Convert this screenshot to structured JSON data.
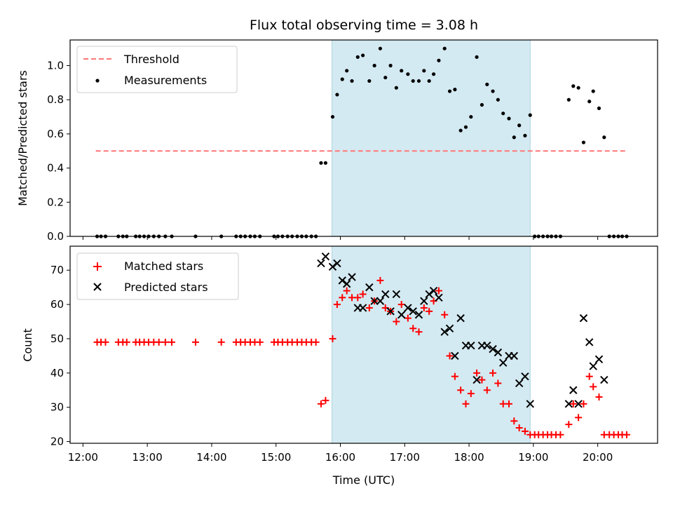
{
  "chart_data": {
    "title": "Flux total observing time = 3.08 h",
    "xlabel": "Time (UTC)",
    "x_unit": "hours UTC",
    "xlim": [
      11.8,
      20.93
    ],
    "xticks": [
      {
        "value": 12,
        "label": "12:00"
      },
      {
        "value": 13,
        "label": "13:00"
      },
      {
        "value": 14,
        "label": "14:00"
      },
      {
        "value": 15,
        "label": "15:00"
      },
      {
        "value": 16,
        "label": "16:00"
      },
      {
        "value": 17,
        "label": "17:00"
      },
      {
        "value": 18,
        "label": "18:00"
      },
      {
        "value": 19,
        "label": "19:00"
      },
      {
        "value": 20,
        "label": "20:00"
      }
    ],
    "shaded_span": {
      "x": [
        15.87,
        18.95
      ],
      "color": "#d4eaf2"
    },
    "panels": [
      {
        "type": "scatter",
        "ylabel": "Matched/Predicted stars",
        "ylim": [
          0,
          1.15
        ],
        "yticks": [
          "0.0",
          "0.2",
          "0.4",
          "0.6",
          "0.8",
          "1.0"
        ],
        "threshold": {
          "name": "Threshold",
          "y": 0.5,
          "x": [
            12.2,
            20.45
          ],
          "color": "#ff7777"
        },
        "series": [
          {
            "name": "Measurements",
            "color": "#000000",
            "points": [
              [
                12.22,
                0
              ],
              [
                12.28,
                0
              ],
              [
                12.35,
                0
              ],
              [
                12.55,
                0
              ],
              [
                12.62,
                0
              ],
              [
                12.68,
                0
              ],
              [
                12.82,
                0
              ],
              [
                12.88,
                0
              ],
              [
                12.95,
                0
              ],
              [
                13.02,
                0
              ],
              [
                13.1,
                0
              ],
              [
                13.18,
                0
              ],
              [
                13.28,
                0
              ],
              [
                13.38,
                0
              ],
              [
                13.75,
                0
              ],
              [
                14.15,
                0
              ],
              [
                14.38,
                0
              ],
              [
                14.45,
                0
              ],
              [
                14.52,
                0
              ],
              [
                14.6,
                0
              ],
              [
                14.67,
                0
              ],
              [
                14.75,
                0
              ],
              [
                14.97,
                0
              ],
              [
                15.03,
                0
              ],
              [
                15.1,
                0
              ],
              [
                15.18,
                0
              ],
              [
                15.25,
                0
              ],
              [
                15.33,
                0
              ],
              [
                15.4,
                0
              ],
              [
                15.47,
                0
              ],
              [
                15.55,
                0
              ],
              [
                15.62,
                0
              ],
              [
                15.7,
                0.43
              ],
              [
                15.77,
                0.43
              ],
              [
                15.88,
                0.7
              ],
              [
                15.95,
                0.83
              ],
              [
                16.03,
                0.92
              ],
              [
                16.1,
                0.97
              ],
              [
                16.18,
                0.91
              ],
              [
                16.27,
                1.05
              ],
              [
                16.35,
                1.06
              ],
              [
                16.45,
                0.91
              ],
              [
                16.53,
                1.0
              ],
              [
                16.62,
                1.1
              ],
              [
                16.7,
                0.93
              ],
              [
                16.78,
                1.0
              ],
              [
                16.87,
                0.87
              ],
              [
                16.95,
                0.97
              ],
              [
                17.05,
                0.95
              ],
              [
                17.13,
                0.91
              ],
              [
                17.22,
                0.91
              ],
              [
                17.3,
                0.97
              ],
              [
                17.38,
                0.91
              ],
              [
                17.45,
                0.95
              ],
              [
                17.53,
                1.03
              ],
              [
                17.62,
                1.1
              ],
              [
                17.7,
                0.85
              ],
              [
                17.78,
                0.86
              ],
              [
                17.87,
                0.62
              ],
              [
                17.95,
                0.64
              ],
              [
                18.03,
                0.7
              ],
              [
                18.12,
                1.05
              ],
              [
                18.2,
                0.77
              ],
              [
                18.28,
                0.89
              ],
              [
                18.37,
                0.85
              ],
              [
                18.45,
                0.8
              ],
              [
                18.53,
                0.72
              ],
              [
                18.62,
                0.69
              ],
              [
                18.7,
                0.58
              ],
              [
                18.78,
                0.65
              ],
              [
                18.87,
                0.59
              ],
              [
                18.95,
                0.71
              ],
              [
                19.02,
                0
              ],
              [
                19.08,
                0
              ],
              [
                19.15,
                0
              ],
              [
                19.22,
                0
              ],
              [
                19.28,
                0
              ],
              [
                19.35,
                0
              ],
              [
                19.42,
                0
              ],
              [
                19.55,
                0.8
              ],
              [
                19.62,
                0.88
              ],
              [
                19.7,
                0.87
              ],
              [
                19.78,
                0.55
              ],
              [
                19.87,
                0.79
              ],
              [
                19.93,
                0.85
              ],
              [
                20.02,
                0.75
              ],
              [
                20.1,
                0.58
              ],
              [
                20.18,
                0
              ],
              [
                20.25,
                0
              ],
              [
                20.32,
                0
              ],
              [
                20.38,
                0
              ],
              [
                20.45,
                0
              ]
            ]
          }
        ],
        "legend": {
          "placement": "upper left",
          "entries": [
            "Threshold",
            "Measurements"
          ]
        }
      },
      {
        "type": "scatter",
        "ylabel": "Count",
        "ylim": [
          19.5,
          77
        ],
        "yticks": [
          "20",
          "30",
          "40",
          "50",
          "60",
          "70"
        ],
        "series": [
          {
            "name": "Matched stars",
            "marker": "+",
            "color": "#ff0000",
            "points": [
              [
                12.22,
                49
              ],
              [
                12.28,
                49
              ],
              [
                12.35,
                49
              ],
              [
                12.55,
                49
              ],
              [
                12.62,
                49
              ],
              [
                12.68,
                49
              ],
              [
                12.82,
                49
              ],
              [
                12.88,
                49
              ],
              [
                12.95,
                49
              ],
              [
                13.02,
                49
              ],
              [
                13.1,
                49
              ],
              [
                13.18,
                49
              ],
              [
                13.28,
                49
              ],
              [
                13.38,
                49
              ],
              [
                13.75,
                49
              ],
              [
                14.15,
                49
              ],
              [
                14.38,
                49
              ],
              [
                14.45,
                49
              ],
              [
                14.52,
                49
              ],
              [
                14.6,
                49
              ],
              [
                14.67,
                49
              ],
              [
                14.75,
                49
              ],
              [
                14.97,
                49
              ],
              [
                15.03,
                49
              ],
              [
                15.1,
                49
              ],
              [
                15.18,
                49
              ],
              [
                15.25,
                49
              ],
              [
                15.33,
                49
              ],
              [
                15.4,
                49
              ],
              [
                15.47,
                49
              ],
              [
                15.55,
                49
              ],
              [
                15.62,
                49
              ],
              [
                15.7,
                31
              ],
              [
                15.77,
                32
              ],
              [
                15.88,
                50
              ],
              [
                15.95,
                60
              ],
              [
                16.03,
                62
              ],
              [
                16.1,
                64
              ],
              [
                16.18,
                62
              ],
              [
                16.27,
                62
              ],
              [
                16.35,
                63
              ],
              [
                16.45,
                59
              ],
              [
                16.53,
                61
              ],
              [
                16.62,
                67
              ],
              [
                16.7,
                59
              ],
              [
                16.78,
                58
              ],
              [
                16.87,
                55
              ],
              [
                16.95,
                60
              ],
              [
                17.05,
                56
              ],
              [
                17.13,
                53
              ],
              [
                17.22,
                52
              ],
              [
                17.3,
                59
              ],
              [
                17.38,
                58
              ],
              [
                17.45,
                61
              ],
              [
                17.53,
                64
              ],
              [
                17.62,
                57
              ],
              [
                17.7,
                45
              ],
              [
                17.78,
                39
              ],
              [
                17.87,
                35
              ],
              [
                17.95,
                31
              ],
              [
                18.03,
                34
              ],
              [
                18.12,
                40
              ],
              [
                18.2,
                38
              ],
              [
                18.28,
                35
              ],
              [
                18.37,
                40
              ],
              [
                18.45,
                37
              ],
              [
                18.53,
                31
              ],
              [
                18.62,
                31
              ],
              [
                18.7,
                26
              ],
              [
                18.78,
                24
              ],
              [
                18.87,
                23
              ],
              [
                18.95,
                22
              ],
              [
                19.02,
                22
              ],
              [
                19.08,
                22
              ],
              [
                19.15,
                22
              ],
              [
                19.22,
                22
              ],
              [
                19.28,
                22
              ],
              [
                19.35,
                22
              ],
              [
                19.42,
                22
              ],
              [
                19.55,
                25
              ],
              [
                19.62,
                31
              ],
              [
                19.7,
                27
              ],
              [
                19.78,
                31
              ],
              [
                19.87,
                39
              ],
              [
                19.93,
                36
              ],
              [
                20.02,
                33
              ],
              [
                20.1,
                22
              ],
              [
                20.18,
                22
              ],
              [
                20.25,
                22
              ],
              [
                20.32,
                22
              ],
              [
                20.38,
                22
              ],
              [
                20.45,
                22
              ]
            ]
          },
          {
            "name": "Predicted stars",
            "marker": "x",
            "color": "#000000",
            "points": [
              [
                15.7,
                72
              ],
              [
                15.77,
                74
              ],
              [
                15.88,
                71
              ],
              [
                15.95,
                72
              ],
              [
                16.03,
                67
              ],
              [
                16.1,
                66
              ],
              [
                16.18,
                68
              ],
              [
                16.27,
                59
              ],
              [
                16.35,
                59
              ],
              [
                16.45,
                65
              ],
              [
                16.53,
                61
              ],
              [
                16.62,
                61
              ],
              [
                16.7,
                63
              ],
              [
                16.78,
                58
              ],
              [
                16.87,
                63
              ],
              [
                16.95,
                57
              ],
              [
                17.05,
                59
              ],
              [
                17.13,
                58
              ],
              [
                17.22,
                57
              ],
              [
                17.3,
                61
              ],
              [
                17.38,
                63
              ],
              [
                17.45,
                64
              ],
              [
                17.53,
                62
              ],
              [
                17.62,
                52
              ],
              [
                17.7,
                53
              ],
              [
                17.78,
                45
              ],
              [
                17.87,
                56
              ],
              [
                17.95,
                48
              ],
              [
                18.03,
                48
              ],
              [
                18.12,
                38
              ],
              [
                18.2,
                48
              ],
              [
                18.28,
                48
              ],
              [
                18.37,
                47
              ],
              [
                18.45,
                46
              ],
              [
                18.53,
                43
              ],
              [
                18.62,
                45
              ],
              [
                18.7,
                45
              ],
              [
                18.78,
                37
              ],
              [
                18.87,
                39
              ],
              [
                18.95,
                31
              ],
              [
                19.55,
                31
              ],
              [
                19.62,
                35
              ],
              [
                19.7,
                31
              ],
              [
                19.78,
                56
              ],
              [
                19.87,
                49
              ],
              [
                19.93,
                42
              ],
              [
                20.02,
                44
              ],
              [
                20.1,
                38
              ]
            ]
          }
        ],
        "legend": {
          "placement": "upper left",
          "entries": [
            "Matched stars",
            "Predicted stars"
          ]
        }
      }
    ]
  }
}
